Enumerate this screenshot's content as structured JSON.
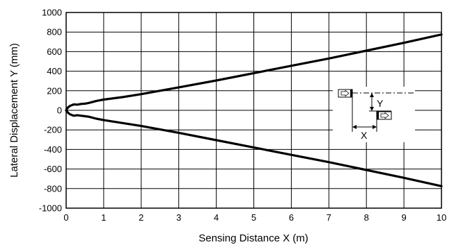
{
  "chart_data": {
    "type": "line",
    "title": "",
    "xlabel": "Sensing Distance X (m)",
    "ylabel": "Lateral Displacement Y (mm)",
    "xlim": [
      0,
      10
    ],
    "ylim": [
      -1000,
      1000
    ],
    "x_ticks": [
      0,
      1,
      2,
      3,
      4,
      5,
      6,
      7,
      8,
      9,
      10
    ],
    "y_ticks": [
      1000,
      800,
      600,
      400,
      200,
      0,
      -200,
      -400,
      -600,
      -800,
      -1000
    ],
    "grid": true,
    "legend": "none",
    "series": [
      {
        "x": [
          0,
          0.05,
          0.1,
          0.2,
          0.3,
          0.4,
          0.5,
          0.6,
          0.8,
          1.0,
          1.5,
          2.0,
          3.0,
          4.0,
          5.0,
          6.0,
          7.0,
          8.0,
          9.0,
          10.0
        ],
        "values": [
          0,
          30,
          45,
          60,
          58,
          65,
          68,
          75,
          95,
          110,
          135,
          165,
          235,
          305,
          380,
          455,
          530,
          610,
          690,
          775
        ]
      },
      {
        "x": [
          0,
          0.05,
          0.1,
          0.2,
          0.3,
          0.4,
          0.5,
          0.6,
          0.8,
          1.0,
          1.5,
          2.0,
          3.0,
          4.0,
          5.0,
          6.0,
          7.0,
          8.0,
          9.0,
          10.0
        ],
        "values": [
          0,
          -25,
          -40,
          -55,
          -50,
          -55,
          -60,
          -65,
          -85,
          -100,
          -130,
          -160,
          -230,
          -305,
          -380,
          -455,
          -530,
          -610,
          -690,
          -775
        ]
      }
    ],
    "line_color": "#000000",
    "inset": {
      "y_label": "Y",
      "x_label": "X"
    }
  }
}
